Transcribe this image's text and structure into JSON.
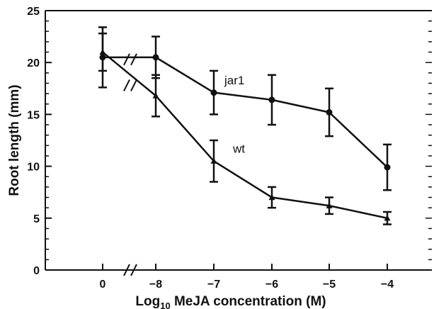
{
  "chart_data": {
    "type": "line",
    "xlabel": "Log",
    "xlabel_sub": "10",
    "xlabel_rest": " MeJA concentration (M)",
    "ylabel": "Root length (mm)",
    "ylim": [
      0,
      25
    ],
    "y_ticks": [
      "0",
      "5",
      "10",
      "15",
      "20",
      "25"
    ],
    "x_ticks": [
      "0",
      "−8",
      "−7",
      "−6",
      "−5",
      "−4"
    ],
    "axis_break": "//",
    "grid": false,
    "legend": "none (series labeled inline)",
    "series": [
      {
        "name": "jar1",
        "marker": "circle",
        "x": [
          "0",
          "−8",
          "−7",
          "−6",
          "−5",
          "−4"
        ],
        "values": [
          20.5,
          20.5,
          17.1,
          16.4,
          15.2,
          9.9
        ],
        "error": [
          2.9,
          2.0,
          2.1,
          2.4,
          2.3,
          2.2
        ]
      },
      {
        "name": "wt",
        "marker": "triangle",
        "x": [
          "0",
          "−8",
          "−7",
          "−6",
          "−5",
          "−4"
        ],
        "values": [
          21.0,
          16.8,
          10.5,
          7.0,
          6.2,
          5.0
        ],
        "error": [
          1.8,
          2.0,
          2.0,
          1.0,
          0.8,
          0.6
        ]
      }
    ]
  }
}
